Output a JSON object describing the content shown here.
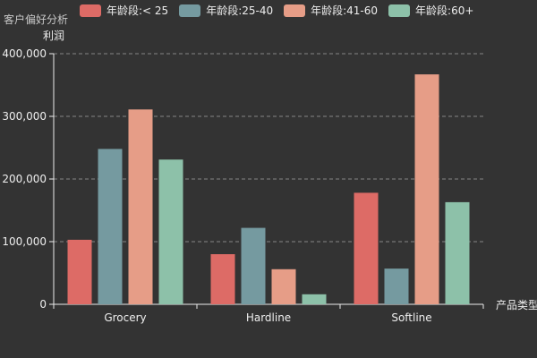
{
  "title": "客户偏好分析",
  "chart_data": {
    "type": "bar",
    "title": "客户偏好分析",
    "xlabel": "产品类型",
    "ylabel": "利润",
    "categories": [
      "Grocery",
      "Hardline",
      "Softline"
    ],
    "series": [
      {
        "name": "年龄段:< 25",
        "color": "#dd6b66",
        "values": [
          103000,
          80000,
          178000
        ]
      },
      {
        "name": "年龄段:25-40",
        "color": "#759aa0",
        "values": [
          248000,
          122000,
          57000
        ]
      },
      {
        "name": "年龄段:41-60",
        "color": "#e69d87",
        "values": [
          311000,
          56000,
          367000
        ]
      },
      {
        "name": "年龄段:60+",
        "color": "#8dc1a9",
        "values": [
          231000,
          16000,
          163000
        ]
      }
    ],
    "ylim": [
      0,
      400000
    ],
    "yticks": [
      0,
      100000,
      200000,
      300000,
      400000
    ],
    "ytick_labels": [
      "0",
      "100,000",
      "200,000",
      "300,000",
      "400,000"
    ],
    "grid": true,
    "legend_position": "top"
  }
}
